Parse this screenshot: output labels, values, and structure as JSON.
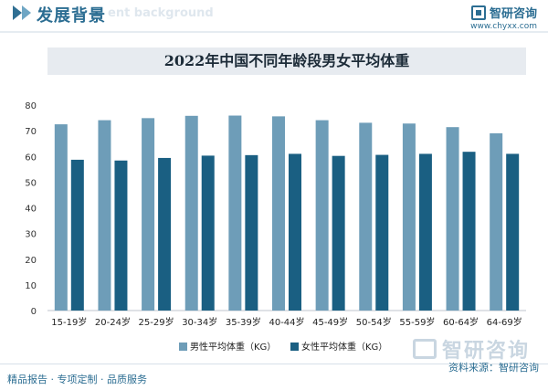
{
  "header": {
    "title": "发展背景",
    "title_en": "ent background"
  },
  "brand": {
    "name": "智研咨询",
    "url": "www.chyxx.com"
  },
  "chart_data": {
    "type": "bar",
    "title": "2022年中国不同年龄段男女平均体重",
    "categories": [
      "15-19岁",
      "20-24岁",
      "25-29岁",
      "30-34岁",
      "35-39岁",
      "40-44岁",
      "45-49岁",
      "50-54岁",
      "55-59岁",
      "60-64岁",
      "64-69岁"
    ],
    "series": [
      {
        "name": "男性平均体重（KG）",
        "color": "#6e9db8",
        "values": [
          72.5,
          74.1,
          74.9,
          75.8,
          75.9,
          75.6,
          74.1,
          73.1,
          72.8,
          71.4,
          69.0
        ]
      },
      {
        "name": "女性平均体重（KG）",
        "color": "#1a5f82",
        "values": [
          58.7,
          58.4,
          59.4,
          60.3,
          60.5,
          61.0,
          60.2,
          60.6,
          61.0,
          61.8,
          61.0
        ]
      }
    ],
    "y_ticks": [
      "0",
      "10",
      "20",
      "30",
      "40",
      "50",
      "60",
      "70",
      "80"
    ],
    "ylim": [
      0,
      80
    ],
    "grid": false,
    "legend_position": "bottom"
  },
  "watermark": {
    "text": "智研咨询"
  },
  "footer": {
    "left": "精品报告 · 专项定制 · 品质服务",
    "source": "资料来源：智研咨询"
  }
}
